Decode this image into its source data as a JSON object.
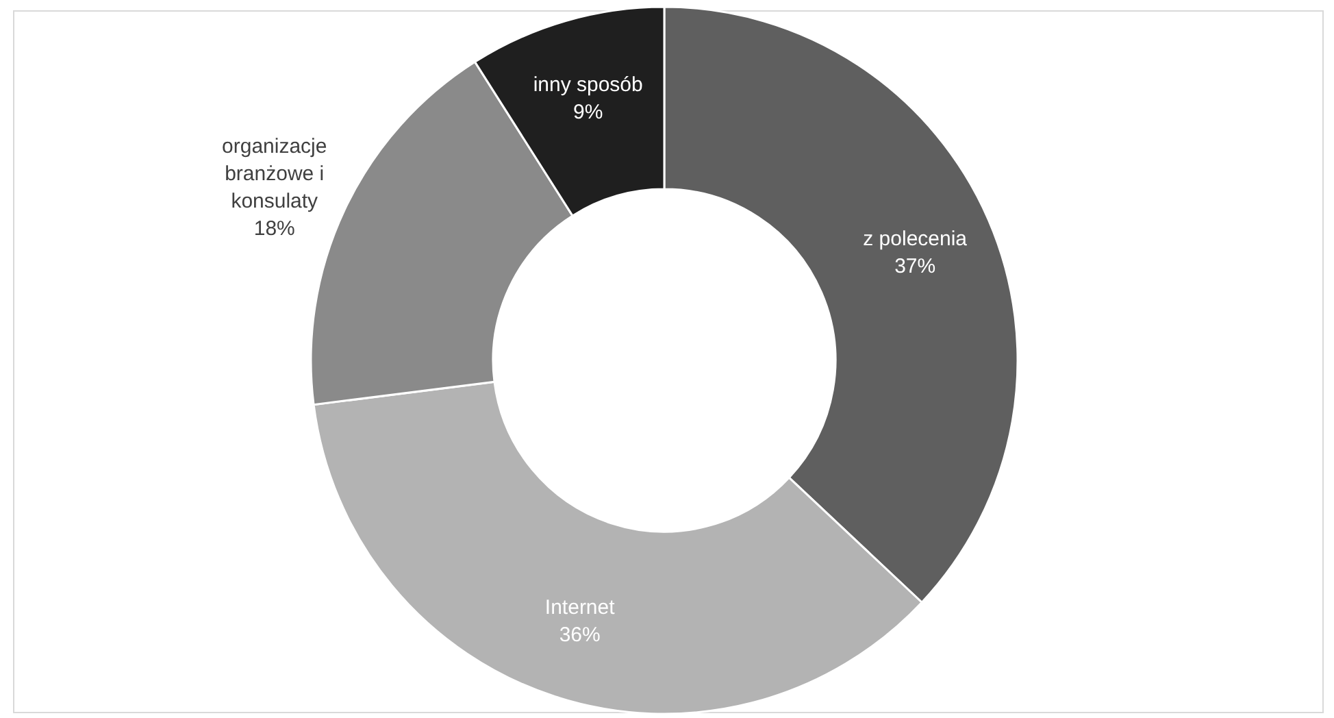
{
  "chart_data": {
    "type": "donut",
    "categories": [
      "z polecenia",
      "Internet",
      "organizacje branżowe i konsulaty",
      "inny sposób"
    ],
    "values": [
      37,
      36,
      18,
      9
    ],
    "colors": [
      "#5f5f5f",
      "#b3b3b3",
      "#8a8a8a",
      "#1f1f1f"
    ],
    "value_labels": [
      "37%",
      "36%",
      "18%",
      "9%"
    ]
  }
}
